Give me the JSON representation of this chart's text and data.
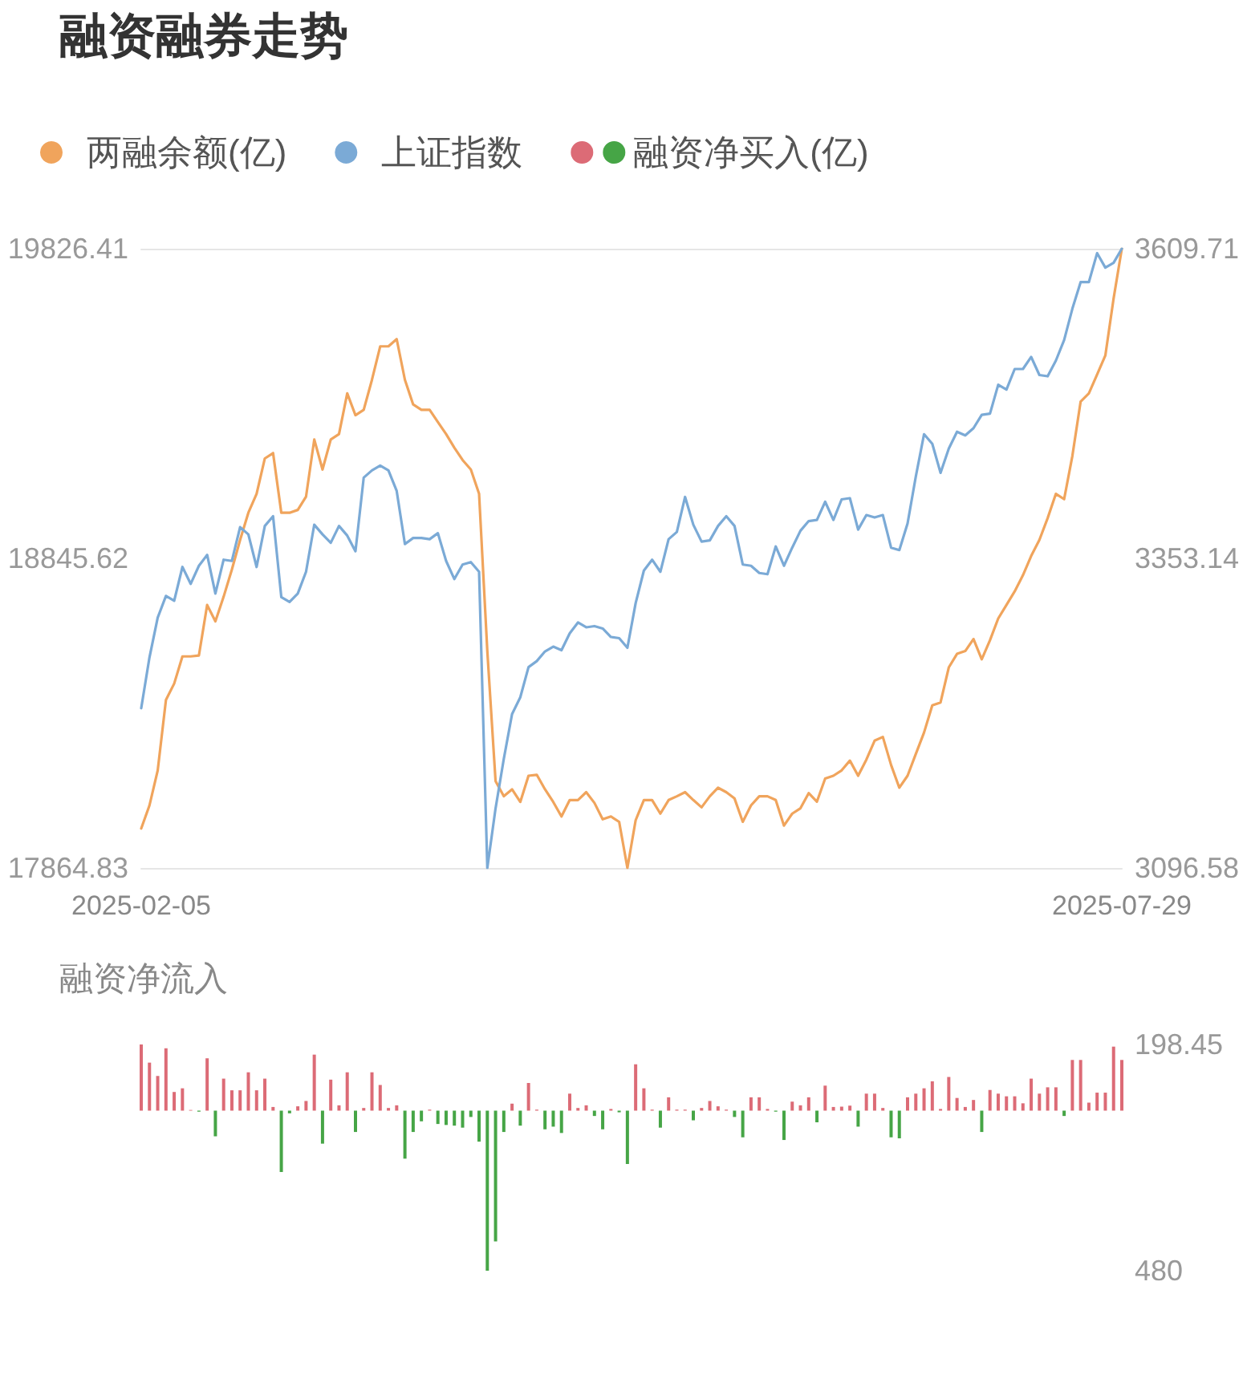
{
  "chart_data": {
    "type": "line",
    "title": "融资融券走势",
    "legend": "top left",
    "grid": false,
    "marker": "none",
    "categories": [
      "2025-02-05",
      null,
      null,
      null,
      null,
      null,
      null,
      null,
      null,
      null,
      null,
      null,
      null,
      null,
      null,
      null,
      null,
      null,
      null,
      null,
      null,
      null,
      null,
      null,
      null,
      null,
      null,
      null,
      null,
      null,
      null,
      null,
      null,
      null,
      null,
      null,
      null,
      null,
      null,
      null,
      null,
      null,
      null,
      null,
      null,
      null,
      null,
      null,
      null,
      null,
      null,
      null,
      null,
      null,
      null,
      null,
      null,
      null,
      null,
      null,
      null,
      null,
      null,
      null,
      null,
      null,
      null,
      null,
      null,
      null,
      null,
      null,
      null,
      null,
      null,
      null,
      null,
      null,
      null,
      null,
      null,
      null,
      null,
      null,
      null,
      null,
      null,
      null,
      null,
      null,
      null,
      null,
      null,
      null,
      null,
      null,
      null,
      null,
      null,
      null,
      null,
      null,
      null,
      null,
      null,
      null,
      null,
      null,
      null,
      null,
      null,
      null,
      null,
      null,
      null,
      null,
      null,
      null,
      null,
      "2025-07-29"
    ],
    "ylim": [
      17864.83,
      19826.41
    ],
    "yticks": [
      17864.83,
      18845.62,
      19826.41
    ],
    "y2lim": [
      3096.58,
      3609.71
    ],
    "y2ticks": [
      3096.58,
      3353.14,
      3609.71
    ],
    "y3lim": [
      -480,
      198.45
    ],
    "y3ticks": [
      {
        "value": -480,
        "label": "480"
      },
      198.45
    ],
    "y3label": "融资净流入",
    "series": [
      {
        "name": "两融余额(亿)",
        "color": "#f0a45c",
        "values": [
          17990,
          18063,
          18174,
          18397,
          18449,
          18535,
          18535,
          18538,
          18698,
          18646,
          18724,
          18810,
          18904,
          18990,
          19050,
          19162,
          19179,
          18990,
          18990,
          18999,
          19041,
          19222,
          19127,
          19222,
          19239,
          19368,
          19299,
          19316,
          19411,
          19517,
          19517,
          19540,
          19411,
          19333,
          19316,
          19316,
          19277,
          19239,
          19196,
          19157,
          19127,
          19050,
          18552,
          18140,
          18092,
          18114,
          18074,
          18157,
          18160,
          18114,
          18074,
          18028,
          18080,
          18080,
          18105,
          18071,
          18019,
          18028,
          18011,
          17864.83,
          18016,
          18080,
          18080,
          18037,
          18080,
          18092,
          18105,
          18080,
          18057,
          18092,
          18119,
          18105,
          18085,
          18011,
          18063,
          18092,
          18092,
          18080,
          17999,
          18037,
          18054,
          18102,
          18075,
          18148,
          18157,
          18174,
          18205,
          18157,
          18208,
          18268,
          18280,
          18191,
          18119,
          18157,
          18226,
          18294,
          18380,
          18389,
          18500,
          18543,
          18552,
          18590,
          18526,
          18586,
          18655,
          18698,
          18741,
          18792,
          18853,
          18904,
          18973,
          19050,
          19033,
          19170,
          19342,
          19368,
          19428,
          19488,
          19668,
          19826.41
        ]
      },
      {
        "name": "上证指数",
        "color": "#7baad6",
        "axis": "y2",
        "values": [
          3229,
          3271,
          3304,
          3322,
          3318,
          3346,
          3332,
          3347,
          3356,
          3324,
          3352,
          3351,
          3379,
          3373,
          3346,
          3380,
          3388,
          3321,
          3317,
          3324,
          3342,
          3381,
          3373,
          3366,
          3380,
          3372,
          3359,
          3420,
          3426,
          3430,
          3426,
          3409,
          3365,
          3370,
          3370,
          3369,
          3374,
          3351,
          3336,
          3348,
          3350,
          3342,
          3096.58,
          3146,
          3187,
          3224,
          3238,
          3263,
          3268,
          3276,
          3280,
          3277,
          3291,
          3300,
          3296,
          3297,
          3295,
          3288,
          3287,
          3279,
          3316,
          3343,
          3352,
          3342,
          3369,
          3375,
          3404,
          3381,
          3367,
          3368,
          3380,
          3388,
          3380,
          3348,
          3347,
          3341,
          3340,
          3363,
          3347,
          3362,
          3376,
          3384,
          3385,
          3400,
          3385,
          3402,
          3403,
          3377,
          3389,
          3387,
          3389,
          3362,
          3360,
          3382,
          3421,
          3456,
          3448,
          3424,
          3444,
          3458,
          3455,
          3461,
          3472,
          3473,
          3497,
          3493,
          3510,
          3510,
          3520,
          3505,
          3504,
          3517,
          3534,
          3560,
          3582,
          3582,
          3606,
          3594,
          3598,
          3609.71
        ]
      },
      {
        "name": "融资净买入(亿)",
        "type": "bar",
        "axis": "y3",
        "values": [
          198.45,
          144,
          104,
          187,
          56,
          67,
          2,
          -3,
          157,
          -77,
          96,
          61,
          61,
          115,
          61,
          96,
          11,
          -184,
          -8,
          13,
          29,
          168,
          -99,
          93,
          16,
          115,
          -64,
          8,
          115,
          77,
          8,
          16,
          -144,
          -64,
          -32,
          3,
          -40,
          -43,
          -45,
          -51,
          -19,
          -93,
          -480,
          -392,
          -64,
          21,
          -45,
          83,
          3,
          -56,
          -48,
          -67,
          51,
          8,
          16,
          -16,
          -56,
          5,
          -5,
          -160,
          139,
          67,
          3,
          -51,
          40,
          3,
          3,
          -29,
          8,
          29,
          13,
          3,
          -19,
          -80,
          40,
          40,
          5,
          -3,
          -88,
          27,
          16,
          40,
          -35,
          75,
          11,
          12,
          15,
          -48,
          51,
          51,
          8,
          -80,
          -83,
          40,
          51,
          67,
          88,
          5,
          101,
          38,
          11,
          32,
          -64,
          62,
          51,
          43,
          43,
          22,
          96,
          51,
          70,
          70,
          -16,
          152,
          152,
          24,
          54,
          54,
          192,
          152
        ],
        "colors": [
          "#dc6b76",
          "#dc6b76",
          "#dc6b76",
          "#dc6b76",
          "#dc6b76",
          "#dc6b76",
          "#dc6b76",
          "#46a546",
          "#dc6b76",
          "#46a546",
          "#dc6b76",
          "#dc6b76",
          "#dc6b76",
          "#dc6b76",
          "#dc6b76",
          "#dc6b76",
          "#dc6b76",
          "#46a546",
          "#46a546",
          "#dc6b76",
          "#dc6b76",
          "#dc6b76",
          "#46a546",
          "#dc6b76",
          "#dc6b76",
          "#dc6b76",
          "#46a546",
          "#dc6b76",
          "#dc6b76",
          "#dc6b76",
          "#dc6b76",
          "#dc6b76",
          "#46a546",
          "#46a546",
          "#46a546",
          "#dc6b76",
          "#46a546",
          "#46a546",
          "#46a546",
          "#46a546",
          "#46a546",
          "#46a546",
          "#46a546",
          "#46a546",
          "#46a546",
          "#dc6b76",
          "#46a546",
          "#dc6b76",
          "#dc6b76",
          "#46a546",
          "#46a546",
          "#46a546",
          "#dc6b76",
          "#dc6b76",
          "#dc6b76",
          "#46a546",
          "#46a546",
          "#dc6b76",
          "#46a546",
          "#46a546",
          "#dc6b76",
          "#dc6b76",
          "#dc6b76",
          "#46a546",
          "#dc6b76",
          "#dc6b76",
          "#dc6b76",
          "#46a546",
          "#dc6b76",
          "#dc6b76",
          "#dc6b76",
          "#dc6b76",
          "#46a546",
          "#46a546",
          "#dc6b76",
          "#dc6b76",
          "#dc6b76",
          "#46a546",
          "#46a546",
          "#dc6b76",
          "#dc6b76",
          "#dc6b76",
          "#46a546",
          "#dc6b76",
          "#dc6b76",
          "#dc6b76",
          "#dc6b76",
          "#46a546",
          "#dc6b76",
          "#dc6b76",
          "#dc6b76",
          "#46a546",
          "#46a546",
          "#dc6b76",
          "#dc6b76",
          "#dc6b76",
          "#dc6b76",
          "#dc6b76",
          "#dc6b76",
          "#dc6b76",
          "#dc6b76",
          "#dc6b76",
          "#46a546",
          "#dc6b76",
          "#dc6b76",
          "#dc6b76",
          "#dc6b76",
          "#dc6b76",
          "#dc6b76",
          "#dc6b76",
          "#dc6b76",
          "#dc6b76",
          "#46a546",
          "#dc6b76",
          "#dc6b76",
          "#dc6b76",
          "#dc6b76",
          "#dc6b76",
          "#dc6b76",
          "#dc6b76"
        ]
      }
    ]
  }
}
